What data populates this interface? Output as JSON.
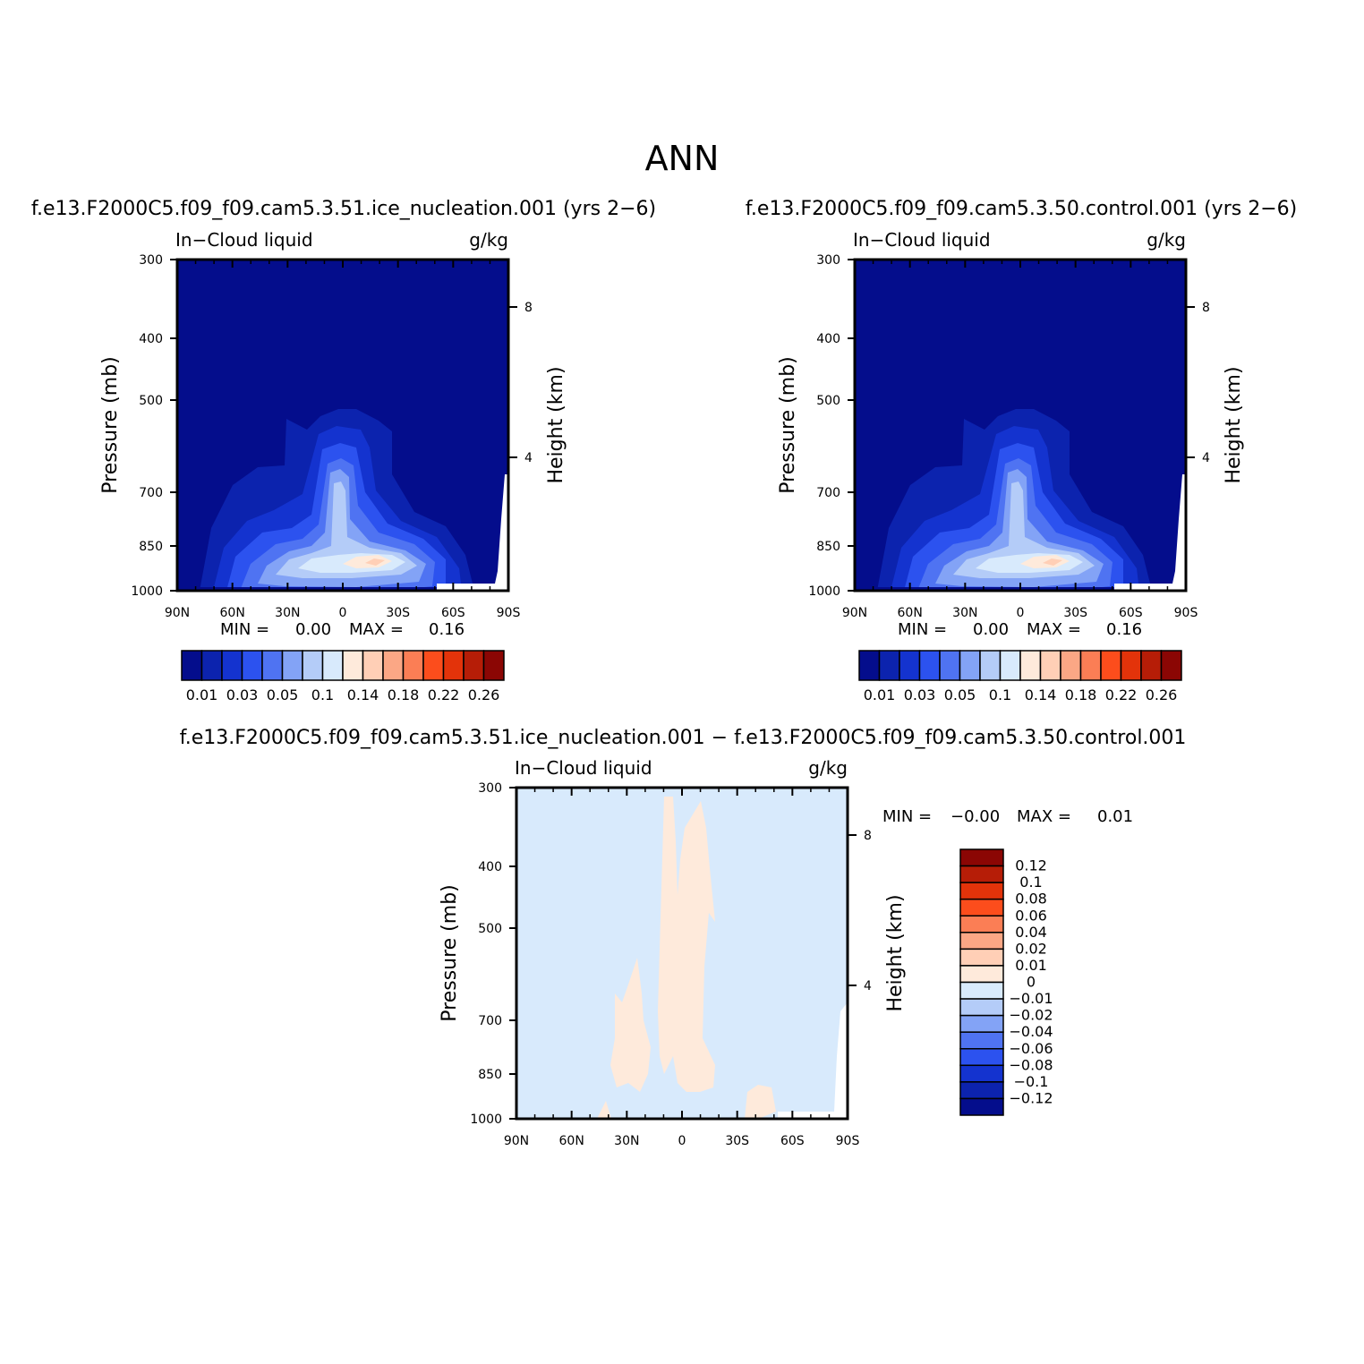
{
  "figure": {
    "title": "ANN"
  },
  "chart_data": [
    {
      "type": "heatmap",
      "id": "p1",
      "title": "f.e13.F2000C5.f09_f09.cam5.3.51.ice_nucleation.001 (yrs 2−6)",
      "left_label": "In−Cloud liquid",
      "right_label": "g/kg",
      "xlabel": "",
      "ylabel": "Pressure (mb)",
      "y2label": "Height (km)",
      "x_ticks": [
        "90N",
        "60N",
        "30N",
        "0",
        "30S",
        "60S",
        "90S"
      ],
      "y_ticks": [
        "300",
        "400",
        "500",
        "700",
        "850",
        "1000"
      ],
      "y2_ticks": [
        "8",
        "4"
      ],
      "stats": {
        "min_label": "MIN =",
        "min": "0.00",
        "max_label": "MAX =",
        "max": "0.16"
      },
      "colorbar": {
        "orientation": "horizontal",
        "colors": [
          "#040d8c",
          "#0c23ae",
          "#1433cf",
          "#2c52ef",
          "#4f73f2",
          "#83a3f6",
          "#b4ccf8",
          "#d8eafc",
          "#feeadb",
          "#ffcfb6",
          "#fba785",
          "#fb7e55",
          "#fc4d1c",
          "#e3330a",
          "#b61d07",
          "#8b0604"
        ],
        "labels": [
          "0.01",
          "0.03",
          "0.05",
          "0.1",
          "0.14",
          "0.18",
          "0.22",
          "0.26"
        ]
      }
    },
    {
      "type": "heatmap",
      "id": "p2",
      "title": "f.e13.F2000C5.f09_f09.cam5.3.50.control.001 (yrs 2−6)",
      "left_label": "In−Cloud liquid",
      "right_label": "g/kg",
      "xlabel": "",
      "ylabel": "Pressure (mb)",
      "y2label": "Height (km)",
      "x_ticks": [
        "90N",
        "60N",
        "30N",
        "0",
        "30S",
        "60S",
        "90S"
      ],
      "y_ticks": [
        "300",
        "400",
        "500",
        "700",
        "850",
        "1000"
      ],
      "y2_ticks": [
        "8",
        "4"
      ],
      "stats": {
        "min_label": "MIN =",
        "min": "0.00",
        "max_label": "MAX =",
        "max": "0.16"
      },
      "colorbar": {
        "orientation": "horizontal",
        "colors": [
          "#040d8c",
          "#0c23ae",
          "#1433cf",
          "#2c52ef",
          "#4f73f2",
          "#83a3f6",
          "#b4ccf8",
          "#d8eafc",
          "#feeadb",
          "#ffcfb6",
          "#fba785",
          "#fb7e55",
          "#fc4d1c",
          "#e3330a",
          "#b61d07",
          "#8b0604"
        ],
        "labels": [
          "0.01",
          "0.03",
          "0.05",
          "0.1",
          "0.14",
          "0.18",
          "0.22",
          "0.26"
        ]
      }
    },
    {
      "type": "heatmap",
      "id": "diff",
      "title": "f.e13.F2000C5.f09_f09.cam5.3.51.ice_nucleation.001 − f.e13.F2000C5.f09_f09.cam5.3.50.control.001",
      "left_label": "In−Cloud liquid",
      "right_label": "g/kg",
      "xlabel": "",
      "ylabel": "Pressure (mb)",
      "y2label": "Height (km)",
      "x_ticks": [
        "90N",
        "60N",
        "30N",
        "0",
        "30S",
        "60S",
        "90S"
      ],
      "y_ticks": [
        "300",
        "400",
        "500",
        "700",
        "850",
        "1000"
      ],
      "y2_ticks": [
        "8",
        "4"
      ],
      "stats": {
        "min_label": "MIN =",
        "min": "−0.00",
        "max_label": "MAX =",
        "max": "0.01"
      },
      "colorbar": {
        "orientation": "vertical",
        "colors": [
          "#8b0604",
          "#b61d07",
          "#e3330a",
          "#fc4d1c",
          "#fb7e55",
          "#fba785",
          "#ffcfb6",
          "#feeadb",
          "#d8eafc",
          "#b4ccf8",
          "#83a3f6",
          "#4f73f2",
          "#2c52ef",
          "#1433cf",
          "#0c23ae",
          "#040d8c"
        ],
        "labels": [
          "0.12",
          "0.1",
          "0.08",
          "0.06",
          "0.04",
          "0.02",
          "0.01",
          "0",
          "−0.01",
          "−0.02",
          "−0.04",
          "−0.06",
          "−0.08",
          "−0.1",
          "−0.12"
        ]
      }
    }
  ]
}
